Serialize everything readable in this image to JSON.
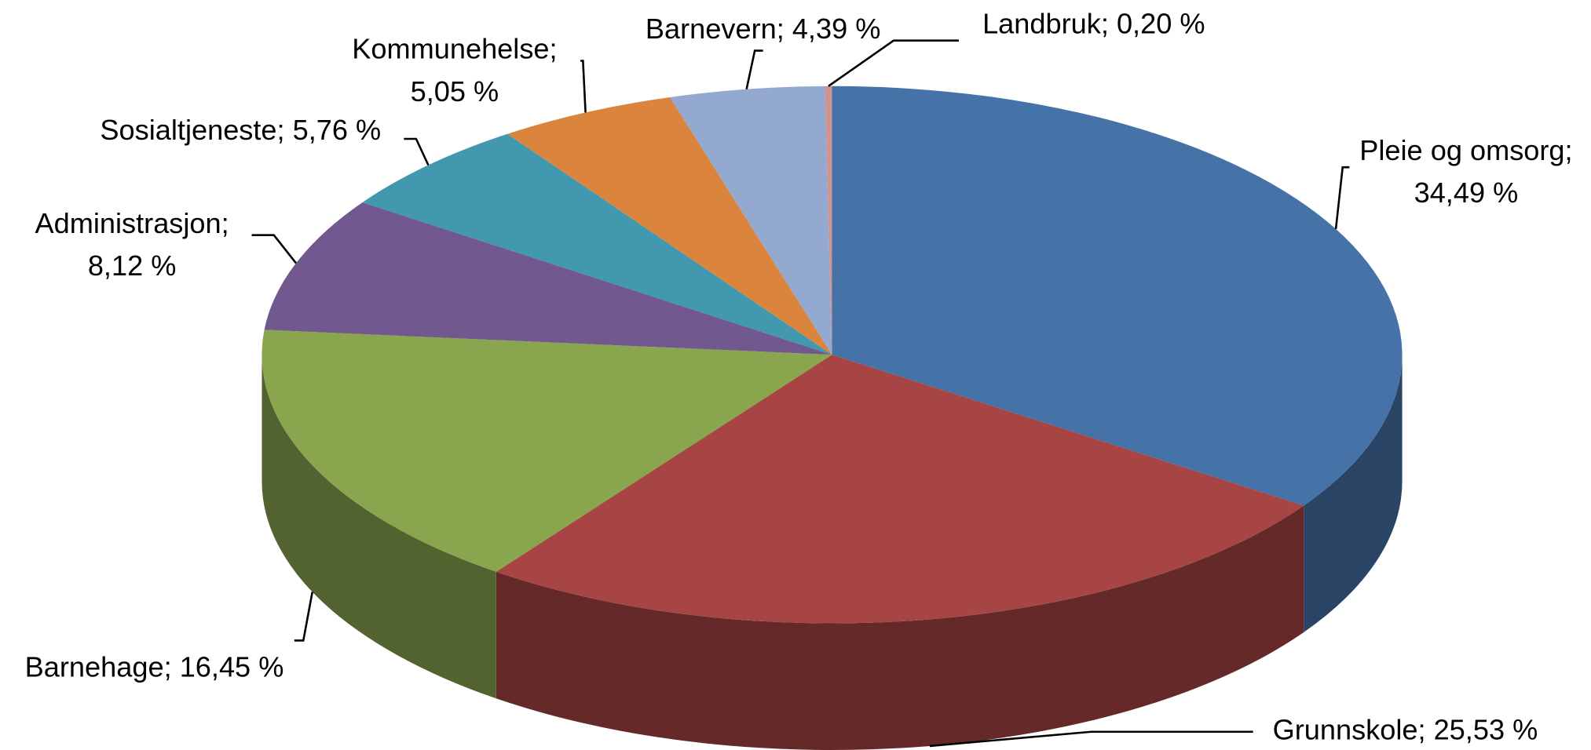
{
  "chart_data": {
    "type": "pie3d",
    "categories": [
      "Pleie og omsorg",
      "Grunnskole",
      "Barnehage",
      "Administrasjon",
      "Sosialtjeneste",
      "Kommunehelse",
      "Barnevern",
      "Landbruk"
    ],
    "values": [
      34.49,
      25.53,
      16.45,
      8.12,
      5.76,
      5.05,
      4.39,
      0.2
    ],
    "value_labels": [
      "34,49 %",
      "25,53 %",
      "16,45 %",
      "8,12 %",
      "5,76 %",
      "5,05 %",
      "4,39 %",
      "0,20 %"
    ],
    "label_separator": ";",
    "colors": [
      "#4572a7",
      "#a64543",
      "#89a54e",
      "#71588f",
      "#4198af",
      "#db843d",
      "#93a9cf",
      "#d19392"
    ]
  }
}
